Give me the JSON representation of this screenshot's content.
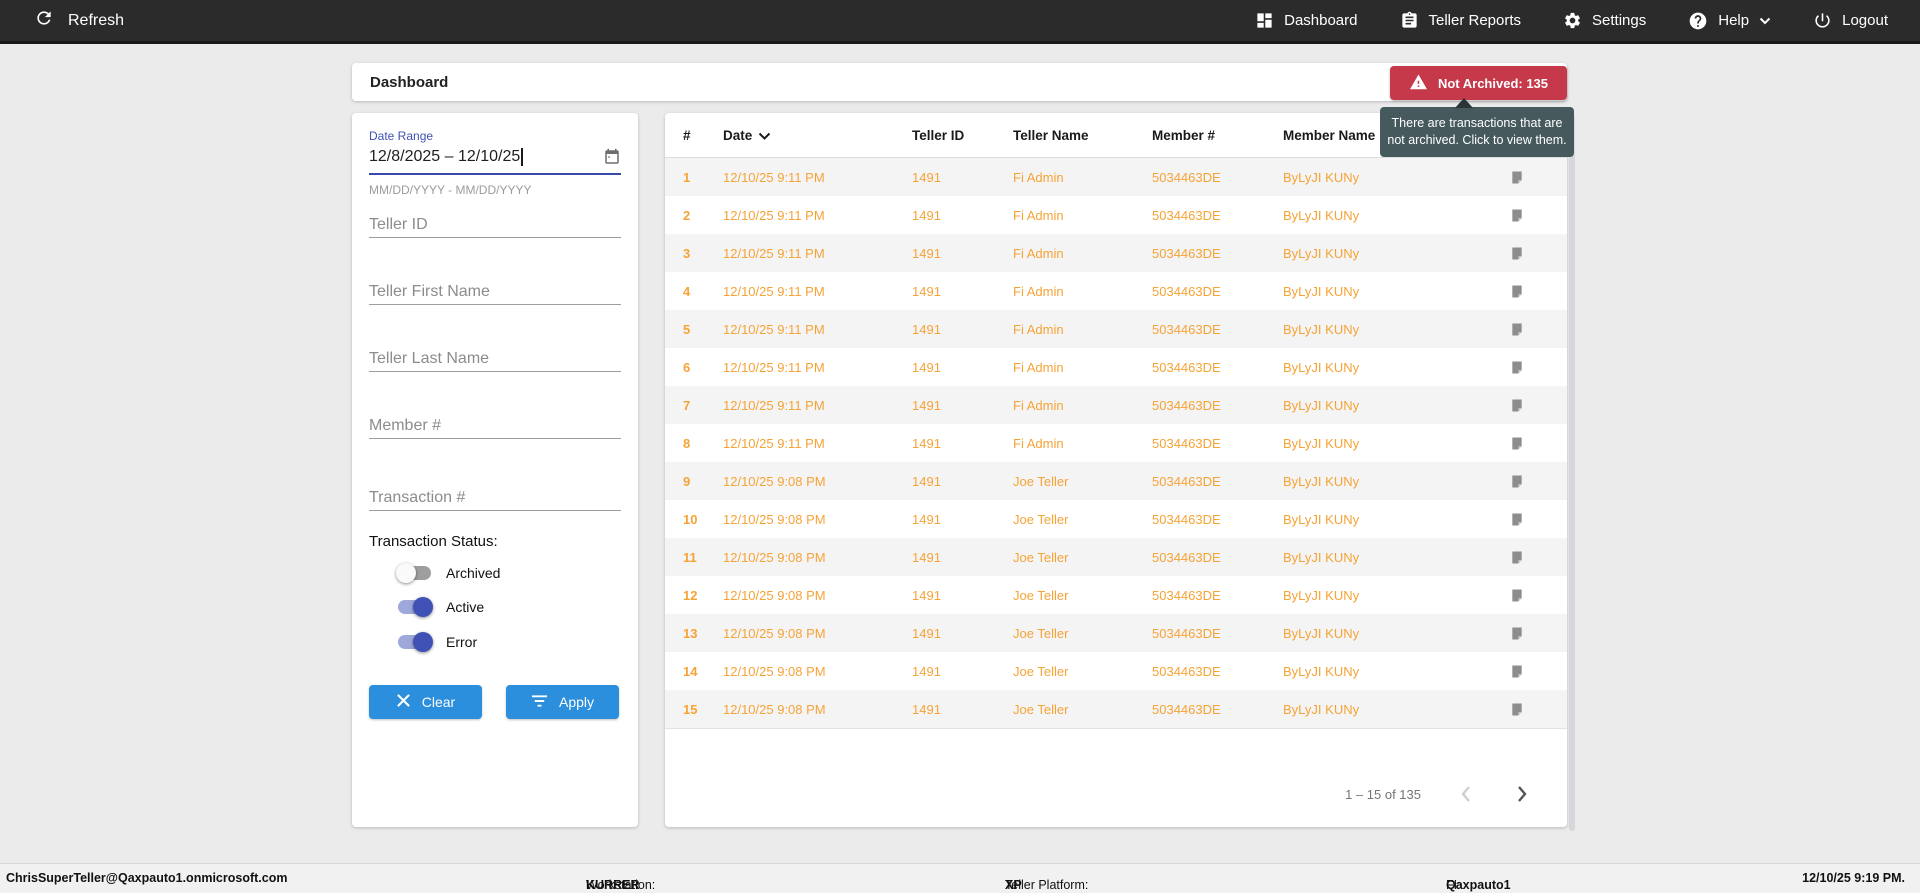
{
  "topbar": {
    "refresh_label": "Refresh",
    "nav": [
      {
        "label": "Dashboard"
      },
      {
        "label": "Teller Reports"
      },
      {
        "label": "Settings"
      },
      {
        "label": "Help"
      },
      {
        "label": "Logout"
      }
    ]
  },
  "title_card": {
    "title": "Dashboard",
    "badge_label": "Not Archived: 135",
    "tooltip_text": "There are transactions that are not archived. Click to view them."
  },
  "filters": {
    "date_range": {
      "label": "Date Range",
      "value": "12/8/2025 – 12/10/25",
      "helper": "MM/DD/YYYY - MM/DD/YYYY"
    },
    "fields": [
      {
        "placeholder": "Teller ID"
      },
      {
        "placeholder": "Teller First Name"
      },
      {
        "placeholder": "Teller Last Name"
      },
      {
        "placeholder": "Member #"
      },
      {
        "placeholder": "Transaction #"
      }
    ],
    "status": {
      "label": "Transaction Status:",
      "toggles": [
        {
          "label": "Archived",
          "on": false
        },
        {
          "label": "Active",
          "on": true
        },
        {
          "label": "Error",
          "on": true
        }
      ]
    },
    "buttons": {
      "clear": "Clear",
      "apply": "Apply"
    }
  },
  "table": {
    "columns": [
      "#",
      "Date",
      "Teller ID",
      "Teller Name",
      "Member #",
      "Member Name"
    ],
    "rows": [
      {
        "num": "1",
        "date": "12/10/25 9:11 PM",
        "teller_id": "1491",
        "teller_name": "Fi Admin",
        "member_num": "5034463DE",
        "member_name": "ByLyJI KUNy"
      },
      {
        "num": "2",
        "date": "12/10/25 9:11 PM",
        "teller_id": "1491",
        "teller_name": "Fi Admin",
        "member_num": "5034463DE",
        "member_name": "ByLyJI KUNy"
      },
      {
        "num": "3",
        "date": "12/10/25 9:11 PM",
        "teller_id": "1491",
        "teller_name": "Fi Admin",
        "member_num": "5034463DE",
        "member_name": "ByLyJI KUNy"
      },
      {
        "num": "4",
        "date": "12/10/25 9:11 PM",
        "teller_id": "1491",
        "teller_name": "Fi Admin",
        "member_num": "5034463DE",
        "member_name": "ByLyJI KUNy"
      },
      {
        "num": "5",
        "date": "12/10/25 9:11 PM",
        "teller_id": "1491",
        "teller_name": "Fi Admin",
        "member_num": "5034463DE",
        "member_name": "ByLyJI KUNy"
      },
      {
        "num": "6",
        "date": "12/10/25 9:11 PM",
        "teller_id": "1491",
        "teller_name": "Fi Admin",
        "member_num": "5034463DE",
        "member_name": "ByLyJI KUNy"
      },
      {
        "num": "7",
        "date": "12/10/25 9:11 PM",
        "teller_id": "1491",
        "teller_name": "Fi Admin",
        "member_num": "5034463DE",
        "member_name": "ByLyJI KUNy"
      },
      {
        "num": "8",
        "date": "12/10/25 9:11 PM",
        "teller_id": "1491",
        "teller_name": "Fi Admin",
        "member_num": "5034463DE",
        "member_name": "ByLyJI KUNy"
      },
      {
        "num": "9",
        "date": "12/10/25 9:08 PM",
        "teller_id": "1491",
        "teller_name": "Joe Teller",
        "member_num": "5034463DE",
        "member_name": "ByLyJI KUNy"
      },
      {
        "num": "10",
        "date": "12/10/25 9:08 PM",
        "teller_id": "1491",
        "teller_name": "Joe Teller",
        "member_num": "5034463DE",
        "member_name": "ByLyJI KUNy"
      },
      {
        "num": "11",
        "date": "12/10/25 9:08 PM",
        "teller_id": "1491",
        "teller_name": "Joe Teller",
        "member_num": "5034463DE",
        "member_name": "ByLyJI KUNy"
      },
      {
        "num": "12",
        "date": "12/10/25 9:08 PM",
        "teller_id": "1491",
        "teller_name": "Joe Teller",
        "member_num": "5034463DE",
        "member_name": "ByLyJI KUNy"
      },
      {
        "num": "13",
        "date": "12/10/25 9:08 PM",
        "teller_id": "1491",
        "teller_name": "Joe Teller",
        "member_num": "5034463DE",
        "member_name": "ByLyJI KUNy"
      },
      {
        "num": "14",
        "date": "12/10/25 9:08 PM",
        "teller_id": "1491",
        "teller_name": "Joe Teller",
        "member_num": "5034463DE",
        "member_name": "ByLyJI KUNy"
      },
      {
        "num": "15",
        "date": "12/10/25 9:08 PM",
        "teller_id": "1491",
        "teller_name": "Joe Teller",
        "member_num": "5034463DE",
        "member_name": "ByLyJI KUNy"
      }
    ],
    "pagination": {
      "range_label": "1 – 15 of 135"
    }
  },
  "footer": {
    "email": "ChrisSuperTeller@Qaxpauto1.onmicrosoft.com",
    "workstation_label": "Workstation:",
    "workstation": "KURRER",
    "platform_label": "Teller Platform:",
    "platform": "XP",
    "fi_label": "FI:",
    "fi": "Qaxpauto1",
    "timestamp": "12/10/25 9:19 PM."
  },
  "icons": {
    "refresh-icon": "circular-arrow",
    "dashboard-icon": "grid-tiles",
    "teller-reports-icon": "clipboard",
    "settings-icon": "gear",
    "help-icon": "question-circle",
    "logout-icon": "power",
    "calendar-icon": "event-calendar",
    "warning-icon": "triangle-exclamation",
    "clear-icon": "x-cross",
    "apply-icon": "filter-lines",
    "note-icon": "folded-note",
    "sort-icon": "chevron-down"
  },
  "colors": {
    "topbar_bg": "#2b2b2b",
    "badge_red": "#c5394b",
    "tooltip_bg": "#465a5e",
    "accent_indigo": "#3f51b5",
    "button_blue": "#2b8fdd",
    "row_orange": "#f6a336"
  }
}
